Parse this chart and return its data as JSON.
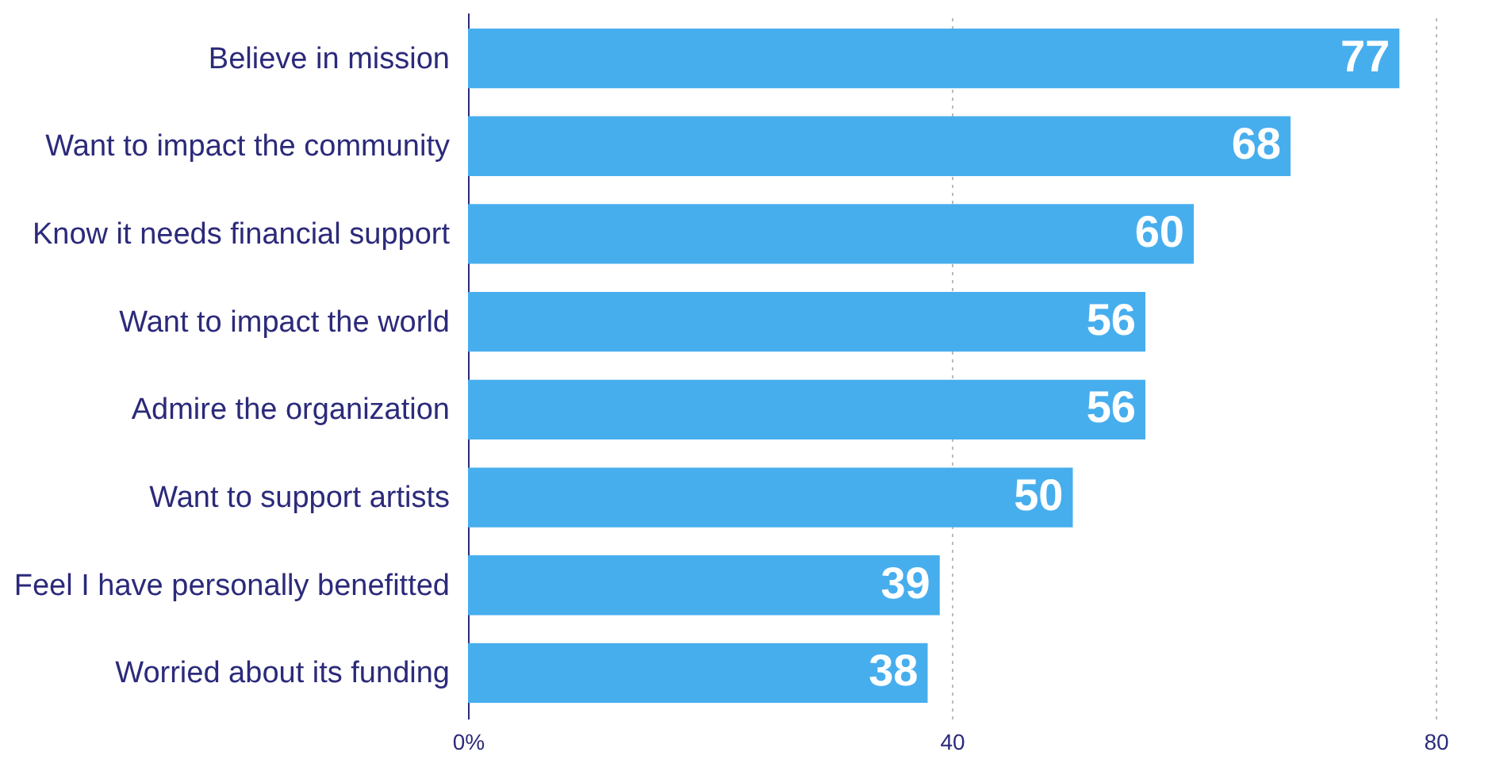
{
  "chart_data": {
    "type": "bar",
    "orientation": "horizontal",
    "categories": [
      "Believe in mission",
      "Want to impact the community",
      "Know it needs financial support",
      "Want to impact the world",
      "Admire the organization",
      "Want to support artists",
      "Feel I have personally benefitted",
      "Worried about its funding"
    ],
    "values": [
      77,
      68,
      60,
      56,
      56,
      50,
      39,
      38
    ],
    "color": "#47aeee",
    "xlim": [
      0,
      80
    ],
    "xticks": [
      {
        "value": 0,
        "label": "0%"
      },
      40,
      80
    ],
    "grid": "x",
    "data_labels": true
  }
}
